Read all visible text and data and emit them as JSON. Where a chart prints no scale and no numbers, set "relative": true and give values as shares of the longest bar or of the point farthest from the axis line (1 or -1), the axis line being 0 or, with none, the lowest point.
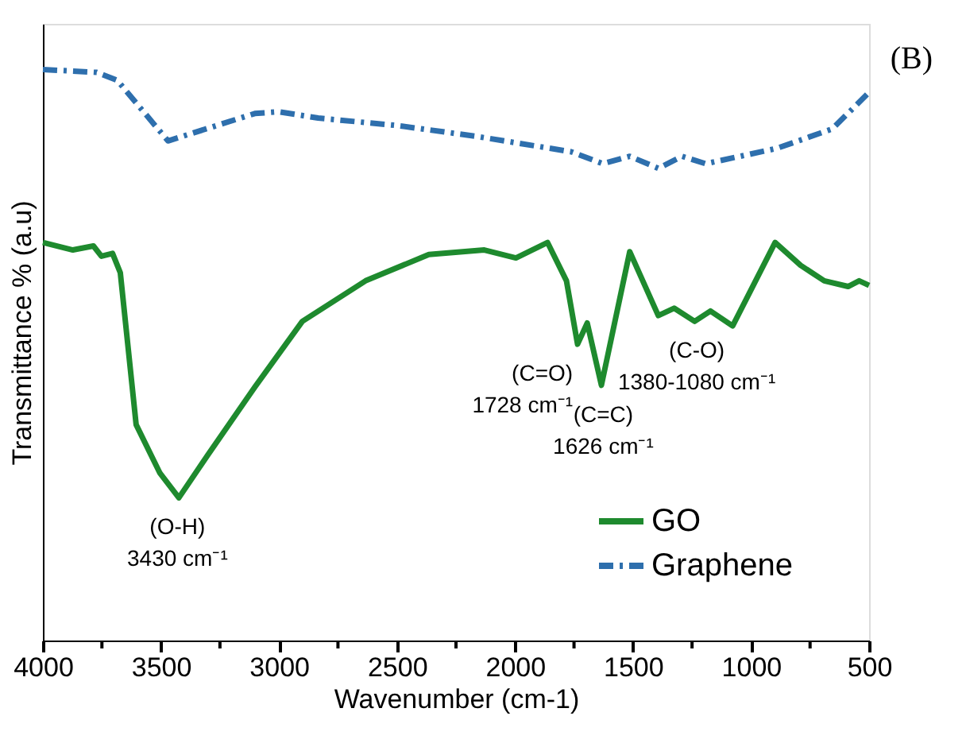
{
  "chart_data": {
    "type": "line",
    "relative": true,
    "xlabel": "Wavenumber (cm-1)",
    "ylabel": "Transmittance % (a.u)",
    "xlim": [
      4000,
      500
    ],
    "xticks": [
      4000,
      {
        "value": 3750,
        "label": null
      },
      3500,
      {
        "value": 3250,
        "label": null
      },
      3000,
      {
        "value": 2750,
        "label": null
      },
      2500,
      {
        "value": 2250,
        "label": null
      },
      2000,
      {
        "value": 1750,
        "label": null
      },
      1500,
      {
        "value": 1250,
        "label": null
      },
      1000,
      {
        "value": 750,
        "label": null
      },
      500
    ],
    "grid": false,
    "legend": "bottom right",
    "marker": "none",
    "series": [
      {
        "name": "GO",
        "color": "#1e8a2e",
        "line_style": "solid",
        "x": [
          4000,
          3873,
          3786,
          3752,
          3705,
          3672,
          3605,
          3504,
          3424,
          3303,
          3102,
          2901,
          2633,
          2365,
          2130,
          1996,
          1862,
          1782,
          1735,
          1694,
          1634,
          1514,
          1393,
          1326,
          1239,
          1172,
          1078,
          898,
          790,
          690,
          589,
          542,
          500
        ],
        "values": [
          0.697,
          0.684,
          0.691,
          0.673,
          0.678,
          0.644,
          0.378,
          0.293,
          0.25,
          0.324,
          0.444,
          0.559,
          0.63,
          0.676,
          0.684,
          0.67,
          0.697,
          0.63,
          0.519,
          0.556,
          0.447,
          0.681,
          0.569,
          0.582,
          0.559,
          0.577,
          0.551,
          0.697,
          0.657,
          0.63,
          0.62,
          0.63,
          0.622
        ]
      },
      {
        "name": "Graphene",
        "color": "#2e6fad",
        "line_style": "dashed",
        "x": [
          4000,
          3772,
          3685,
          3470,
          3102,
          3000,
          2834,
          2500,
          2164,
          1762,
          1628,
          1514,
          1393,
          1292,
          1192,
          890,
          656,
          500
        ],
        "values": [
          1.0,
          0.995,
          0.981,
          0.875,
          0.923,
          0.926,
          0.915,
          0.902,
          0.883,
          0.856,
          0.835,
          0.848,
          0.827,
          0.848,
          0.835,
          0.862,
          0.896,
          0.96
        ]
      }
    ],
    "annotations": [
      {
        "text": "(O-H)\n3430 cm⁻¹",
        "x": 3430,
        "y": 0.25
      },
      {
        "text": "(C=O)\n1728 cm⁻¹",
        "x": 1728,
        "y": 0.519
      },
      {
        "text": "(C=C)\n1626 cm⁻¹",
        "x": 1626,
        "y": 0.447
      },
      {
        "text": "(C-O)\n1380-1080 cm⁻¹",
        "x": 1230,
        "y": 0.559
      },
      "(B)"
    ]
  }
}
